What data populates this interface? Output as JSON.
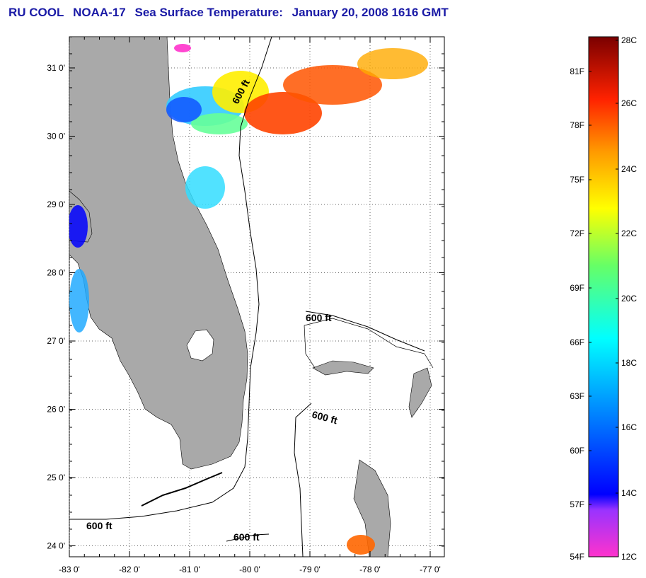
{
  "title": {
    "org": "RU COOL",
    "satellite": "NOAA-17",
    "product": "Sea Surface Temperature:",
    "datetime": "January 20, 2008 1616 GMT"
  },
  "map": {
    "lat_ticks": [
      "31 0'",
      "30 0'",
      "29 0'",
      "28 0'",
      "27 0'",
      "26 0'",
      "25 0'",
      "24 0'"
    ],
    "lon_ticks": [
      "-83 0'",
      "-82 0'",
      "-81 0'",
      "-80 0'",
      "-79 0'",
      "-78 0'",
      "-77 0'"
    ],
    "contour_label": "600 ft",
    "land_color": "#a9a9a9"
  },
  "colorbar": {
    "fahrenheit_labels": [
      "81F",
      "78F",
      "75F",
      "72F",
      "69F",
      "66F",
      "63F",
      "60F",
      "57F",
      "54F"
    ],
    "celsius_labels": [
      "28C",
      "26C",
      "24C",
      "22C",
      "20C",
      "18C",
      "16C",
      "14C",
      "12C"
    ]
  }
}
